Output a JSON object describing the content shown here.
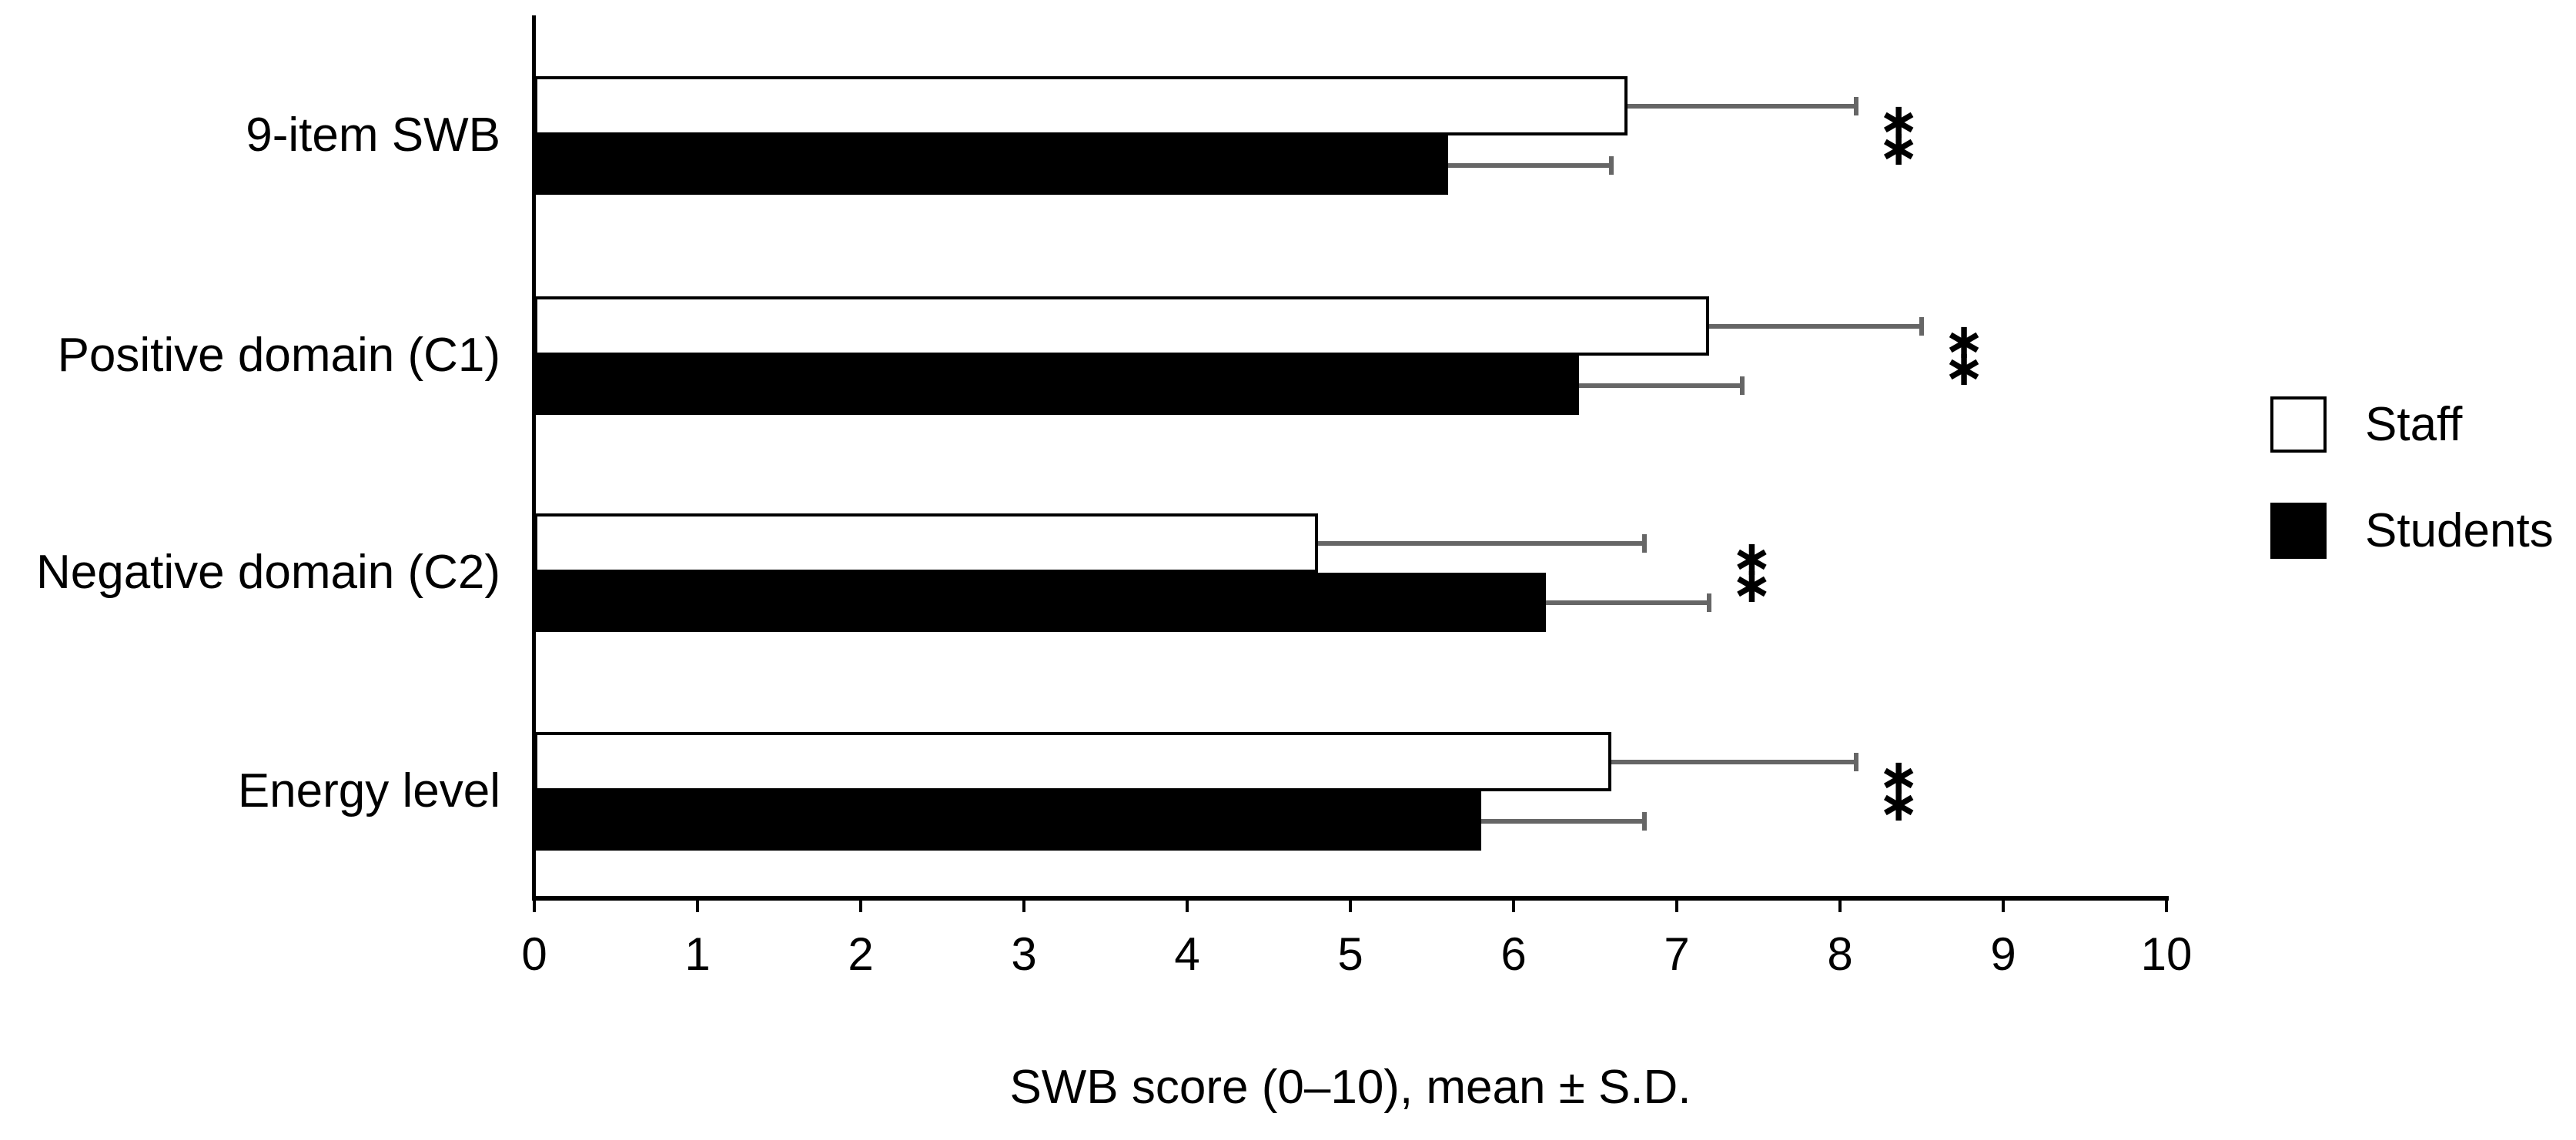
{
  "figure_type": "horizontal grouped bar chart with error bars",
  "x_axis": {
    "title": "SWB score (0–10), mean ± S.D.",
    "tick_labels": [
      "0",
      "1",
      "2",
      "3",
      "4",
      "5",
      "6",
      "7",
      "8",
      "9",
      "10"
    ],
    "min": 0,
    "max": 10
  },
  "legend": {
    "items": [
      {
        "label": "Staff",
        "swatch": "white-outlined-square"
      },
      {
        "label": "Students",
        "swatch": "black-filled-square"
      }
    ]
  },
  "chart_data": {
    "type": "bar",
    "orientation": "horizontal",
    "categories": [
      "9-item SWB",
      "Positive domain (C1)",
      "Negative domain (C2)",
      "Energy level"
    ],
    "series": [
      {
        "name": "Staff",
        "fill": "#ffffff",
        "border": "#000000",
        "values": [
          6.7,
          7.2,
          4.8,
          6.6
        ],
        "sd": [
          1.4,
          1.3,
          2.0,
          1.5
        ]
      },
      {
        "name": "Students",
        "fill": "#000000",
        "border": "#000000",
        "values": [
          5.6,
          6.4,
          6.2,
          5.8
        ],
        "sd": [
          1.0,
          1.0,
          1.0,
          1.0
        ]
      }
    ],
    "error_bars": "right-side only, mean + S.D.",
    "significance_markers": [
      {
        "category": "9-item SWB",
        "label": "**"
      },
      {
        "category": "Positive domain (C1)",
        "label": "**"
      },
      {
        "category": "Negative domain (C2)",
        "label": "**"
      },
      {
        "category": "Energy level",
        "label": "**"
      }
    ],
    "xlabel": "SWB score (0–10), mean ± S.D.",
    "xlim": [
      0,
      10
    ],
    "grid": false,
    "legend_position": "right"
  },
  "colors": {
    "background": "#ffffff",
    "bar_black": "#000000",
    "bar_white": "#ffffff",
    "bar_border": "#000000",
    "error_bar": "#666666",
    "text": "#000000"
  }
}
